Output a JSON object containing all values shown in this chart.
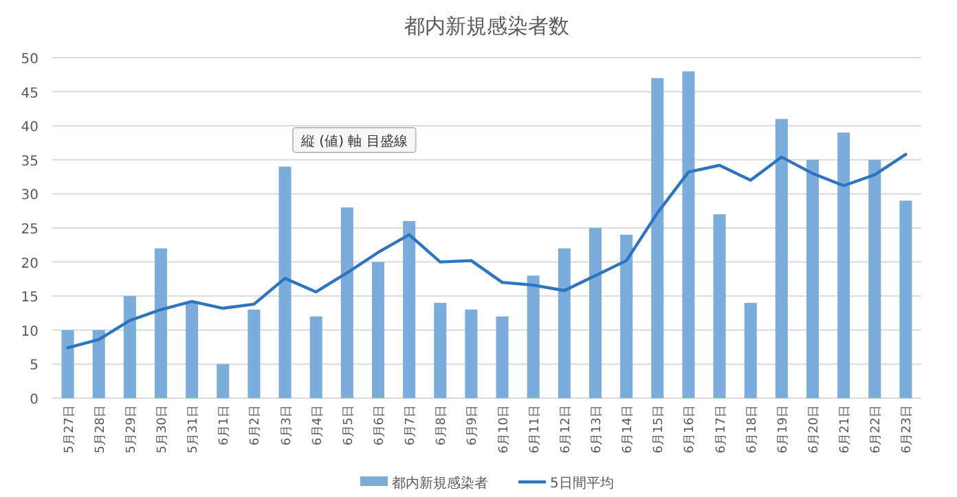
{
  "chart_data": {
    "type": "bar",
    "title": "都内新規感染者数",
    "categories": [
      "5月27日",
      "5月28日",
      "5月29日",
      "5月30日",
      "5月31日",
      "6月1日",
      "6月2日",
      "6月3日",
      "6月4日",
      "6月5日",
      "6月6日",
      "6月7日",
      "6月8日",
      "6月9日",
      "6月10日",
      "6月11日",
      "6月12日",
      "6月13日",
      "6月14日",
      "6月15日",
      "6月16日",
      "6月17日",
      "6月18日",
      "6月19日",
      "6月20日",
      "6月21日",
      "6月22日",
      "6月23日"
    ],
    "series": [
      {
        "name": "都内新規感染者",
        "color": "#7aacdc",
        "values": [
          10,
          10,
          15,
          22,
          14,
          5,
          13,
          34,
          12,
          28,
          20,
          26,
          14,
          13,
          12,
          18,
          22,
          25,
          24,
          47,
          48,
          27,
          14,
          41,
          35,
          39,
          35,
          29
        ]
      },
      {
        "name": "5日間平均",
        "type": "line",
        "color": "#2e75c0",
        "values": [
          7.4,
          8.6,
          11.4,
          13.0,
          14.2,
          13.2,
          13.8,
          17.6,
          15.6,
          18.4,
          21.4,
          24.0,
          20.0,
          20.2,
          17.0,
          16.6,
          15.8,
          18.0,
          20.2,
          27.2,
          33.2,
          34.2,
          32.0,
          35.4,
          33.0,
          31.2,
          32.8,
          35.8
        ]
      }
    ],
    "ylim": [
      0,
      50
    ],
    "yticks": [
      0,
      5,
      10,
      15,
      20,
      25,
      30,
      35,
      40,
      45,
      50
    ],
    "grid": "y",
    "legend": "bottom",
    "annotations": [
      "縦 (値) 軸 目盛線"
    ]
  }
}
